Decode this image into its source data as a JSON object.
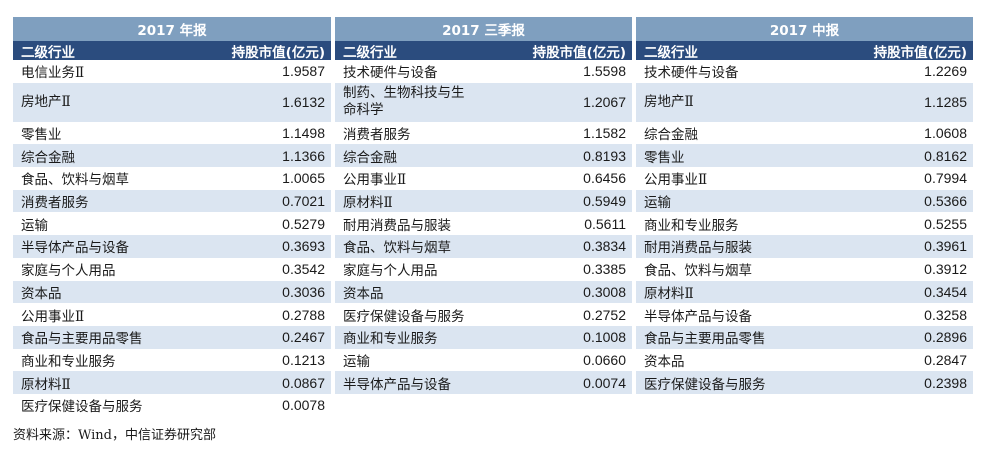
{
  "panels": [
    {
      "title": "2017 年报",
      "col_industry": "二级行业",
      "col_value": "持股市值(亿元)",
      "rows": [
        {
          "name": "电信业务Ⅱ",
          "value": "1.9587"
        },
        {
          "name": "房地产Ⅱ",
          "value": "1.6132"
        },
        {
          "name": "零售业",
          "value": "1.1498"
        },
        {
          "name": "综合金融",
          "value": "1.1366"
        },
        {
          "name": "食品、饮料与烟草",
          "value": "1.0065"
        },
        {
          "name": "消费者服务",
          "value": "0.7021"
        },
        {
          "name": "运输",
          "value": "0.5279"
        },
        {
          "name": "半导体产品与设备",
          "value": "0.3693"
        },
        {
          "name": "家庭与个人用品",
          "value": "0.3542"
        },
        {
          "name": "资本品",
          "value": "0.3036"
        },
        {
          "name": "公用事业Ⅱ",
          "value": "0.2788"
        },
        {
          "name": "食品与主要用品零售",
          "value": "0.2467"
        },
        {
          "name": "商业和专业服务",
          "value": "0.1213"
        },
        {
          "name": "原材料Ⅱ",
          "value": "0.0867"
        },
        {
          "name": "医疗保健设备与服务",
          "value": "0.0078"
        }
      ]
    },
    {
      "title": "2017 三季报",
      "col_industry": "二级行业",
      "col_value": "持股市值(亿元)",
      "rows": [
        {
          "name": "技术硬件与设备",
          "value": "1.5598"
        },
        {
          "name": "制药、生物科技与生\n命科学",
          "value": "1.2067"
        },
        {
          "name": "消费者服务",
          "value": "1.1582"
        },
        {
          "name": "综合金融",
          "value": "0.8193"
        },
        {
          "name": "公用事业Ⅱ",
          "value": "0.6456"
        },
        {
          "name": "原材料Ⅱ",
          "value": "0.5949"
        },
        {
          "name": "耐用消费品与服装",
          "value": "0.5611"
        },
        {
          "name": "食品、饮料与烟草",
          "value": "0.3834"
        },
        {
          "name": "家庭与个人用品",
          "value": "0.3385"
        },
        {
          "name": "资本品",
          "value": "0.3008"
        },
        {
          "name": "医疗保健设备与服务",
          "value": "0.2752"
        },
        {
          "name": "商业和专业服务",
          "value": "0.1008"
        },
        {
          "name": "运输",
          "value": "0.0660"
        },
        {
          "name": "半导体产品与设备",
          "value": "0.0074"
        }
      ]
    },
    {
      "title": "2017 中报",
      "col_industry": "二级行业",
      "col_value": "持股市值(亿元)",
      "rows": [
        {
          "name": "技术硬件与设备",
          "value": "1.2269"
        },
        {
          "name": "房地产Ⅱ",
          "value": "1.1285"
        },
        {
          "name": "综合金融",
          "value": "1.0608"
        },
        {
          "name": "零售业",
          "value": "0.8162"
        },
        {
          "name": "公用事业Ⅱ",
          "value": "0.7994"
        },
        {
          "name": "运输",
          "value": "0.5366"
        },
        {
          "name": "商业和专业服务",
          "value": "0.5255"
        },
        {
          "name": "耐用消费品与服装",
          "value": "0.3961"
        },
        {
          "name": "食品、饮料与烟草",
          "value": "0.3912"
        },
        {
          "name": "原材料Ⅱ",
          "value": "0.3454"
        },
        {
          "name": "半导体产品与设备",
          "value": "0.3258"
        },
        {
          "name": "食品与主要用品零售",
          "value": "0.2896"
        },
        {
          "name": "资本品",
          "value": "0.2847"
        },
        {
          "name": "医疗保健设备与服务",
          "value": "0.2398"
        }
      ]
    }
  ],
  "source": "资料来源：Wind，中信证券研究部"
}
